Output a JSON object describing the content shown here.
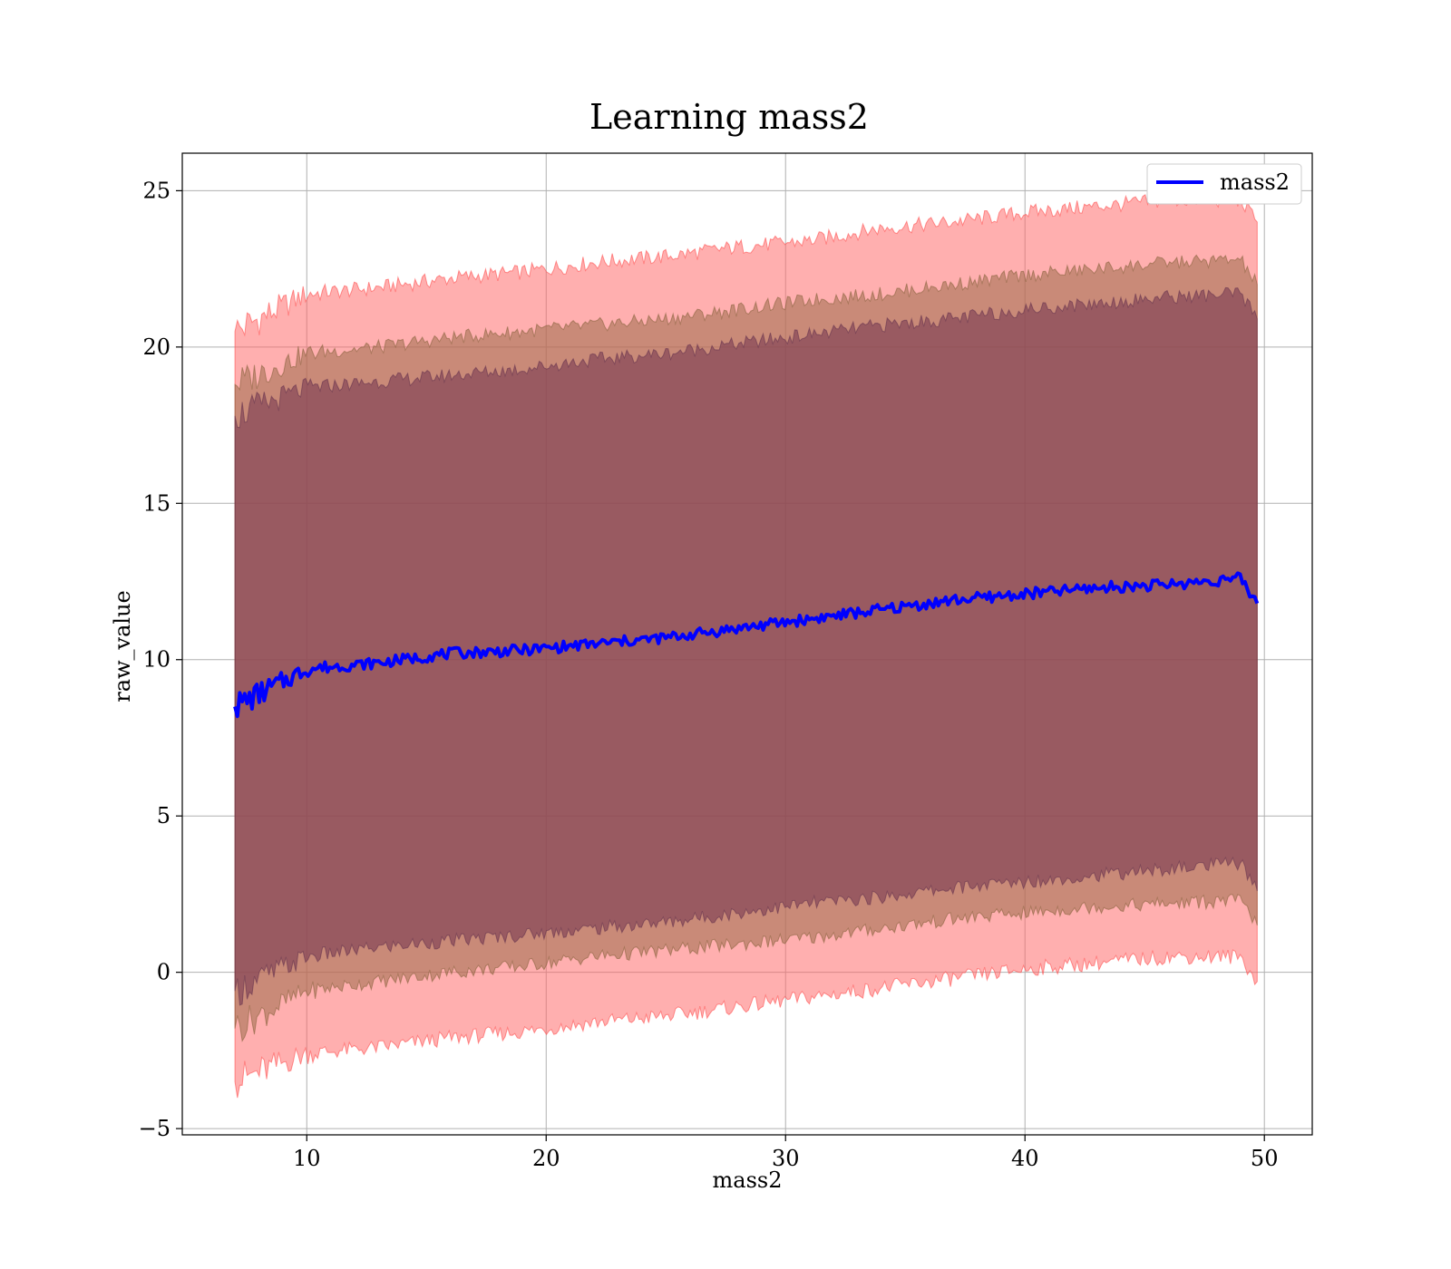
{
  "chart_data": {
    "type": "area",
    "title": "Learning mass2",
    "xlabel": "mass2",
    "ylabel": "raw_value",
    "xlim": [
      4.8,
      52
    ],
    "ylim": [
      -5.2,
      26.2
    ],
    "xticks": [
      10,
      20,
      30,
      40,
      50
    ],
    "yticks": [
      -5,
      0,
      5,
      10,
      15,
      20,
      25
    ],
    "xtick_labels": [
      "10",
      "20",
      "30",
      "40",
      "50"
    ],
    "ytick_labels": [
      "−5",
      "0",
      "5",
      "10",
      "15",
      "20",
      "25"
    ],
    "grid": true,
    "legend": {
      "position": "top-right",
      "entries": [
        "mass2"
      ]
    },
    "colors": {
      "line": "#0000ff",
      "band_outer": "#ff6666",
      "band_middle": "#9c6b4a",
      "band_inner": "#7a3a52"
    },
    "x": [
      7.0,
      10.0,
      13.0,
      16.0,
      19.0,
      22.0,
      25.0,
      28.0,
      31.0,
      34.0,
      37.0,
      40.0,
      43.0,
      46.0,
      49.0,
      49.7
    ],
    "series": [
      {
        "name": "mass2",
        "role": "mean",
        "values": [
          8.5,
          9.7,
          9.9,
          10.2,
          10.3,
          10.5,
          10.7,
          11.0,
          11.3,
          11.6,
          11.9,
          12.1,
          12.3,
          12.4,
          12.6,
          11.8
        ]
      },
      {
        "role": "outer_upper",
        "values": [
          20.5,
          21.7,
          21.9,
          22.2,
          22.4,
          22.7,
          22.9,
          23.2,
          23.4,
          23.8,
          24.0,
          24.3,
          24.5,
          24.7,
          24.7,
          24.0
        ]
      },
      {
        "role": "outer_lower",
        "values": [
          -3.5,
          -2.6,
          -2.4,
          -2.1,
          -1.9,
          -1.6,
          -1.4,
          -1.1,
          -0.8,
          -0.5,
          -0.2,
          0.1,
          0.3,
          0.5,
          0.5,
          -0.3
        ]
      },
      {
        "role": "middle_upper",
        "values": [
          18.8,
          19.8,
          20.0,
          20.3,
          20.5,
          20.7,
          20.9,
          21.2,
          21.5,
          21.7,
          22.0,
          22.3,
          22.5,
          22.7,
          22.8,
          22.0
        ]
      },
      {
        "role": "middle_lower",
        "values": [
          -1.8,
          -0.6,
          -0.3,
          0.0,
          0.2,
          0.5,
          0.7,
          0.9,
          1.1,
          1.4,
          1.7,
          1.9,
          2.1,
          2.2,
          2.3,
          1.5
        ]
      },
      {
        "role": "inner_upper",
        "values": [
          17.8,
          18.7,
          18.9,
          19.1,
          19.3,
          19.6,
          19.8,
          20.1,
          20.4,
          20.7,
          20.9,
          21.2,
          21.4,
          21.6,
          21.7,
          20.9
        ]
      },
      {
        "role": "inner_lower",
        "values": [
          -0.6,
          0.5,
          0.8,
          1.0,
          1.2,
          1.4,
          1.6,
          1.9,
          2.2,
          2.4,
          2.7,
          2.9,
          3.1,
          3.3,
          3.5,
          2.6
        ]
      }
    ]
  }
}
